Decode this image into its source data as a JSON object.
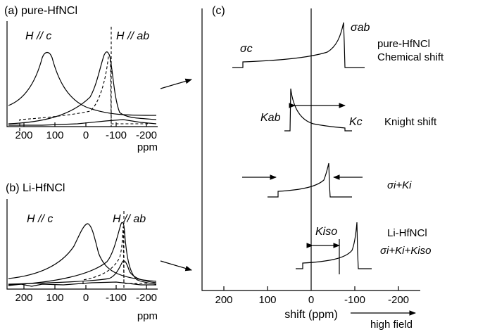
{
  "panel_a": {
    "title": "(a) pure-HfNCl",
    "label_c": "H // c",
    "label_ab": "H // ab",
    "ticks": [
      "200",
      "100",
      "0",
      "-100",
      "-200"
    ],
    "unit": "ppm"
  },
  "panel_b": {
    "title": "(b) Li-HfNCl",
    "label_c": "H // c",
    "label_ab": "H // ab",
    "ticks": [
      "200",
      "100",
      "0",
      "-100",
      "-200"
    ],
    "unit": "ppm"
  },
  "panel_c": {
    "title": "(c)",
    "sigma_c": "σc",
    "sigma_ab": "σab",
    "row1": [
      "pure-HfNCl",
      "Chemical shift"
    ],
    "k_ab": "Kab",
    "k_c": "Kc",
    "row2": "Knight shift",
    "row3": "σi+Ki",
    "k_iso": "Kiso",
    "row4": [
      "Li-HfNCl",
      "σi+Ki+Kiso"
    ],
    "ticks": [
      "200",
      "100",
      "0",
      "-100",
      "-200"
    ],
    "xlabel": "shift (ppm)",
    "field_label": "high field"
  }
}
